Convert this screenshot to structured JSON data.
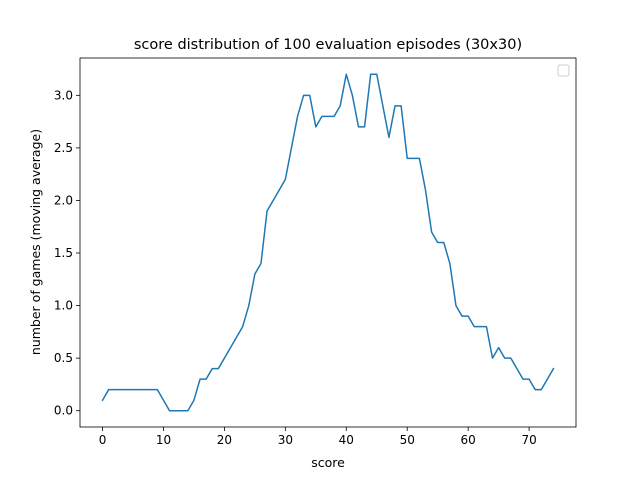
{
  "chart_data": {
    "type": "line",
    "title": "score distribution of 100 evaluation episodes (30x30)",
    "xlabel": "score",
    "ylabel": "number of games (moving average)",
    "xlim": [
      -3.7,
      77.7
    ],
    "ylim": [
      -0.155,
      3.355
    ],
    "xticks": [
      0,
      10,
      20,
      30,
      40,
      50,
      60,
      70
    ],
    "yticks": [
      0.0,
      0.5,
      1.0,
      1.5,
      2.0,
      2.5,
      3.0
    ],
    "ytick_labels": [
      "0.0",
      "0.5",
      "1.0",
      "1.5",
      "2.0",
      "2.5",
      "3.0"
    ],
    "legend": "top-right (empty)",
    "grid": false,
    "series": [
      {
        "name": "",
        "color": "#1f77b4",
        "x": [
          0,
          1,
          2,
          3,
          4,
          5,
          6,
          7,
          8,
          9,
          10,
          11,
          12,
          13,
          14,
          15,
          16,
          17,
          18,
          19,
          20,
          21,
          22,
          23,
          24,
          25,
          26,
          27,
          28,
          29,
          30,
          31,
          32,
          33,
          34,
          35,
          36,
          37,
          38,
          39,
          40,
          41,
          42,
          43,
          44,
          45,
          46,
          47,
          48,
          49,
          50,
          51,
          52,
          53,
          54,
          55,
          56,
          57,
          58,
          59,
          60,
          61,
          62,
          63,
          64,
          65,
          66,
          67,
          68,
          69,
          70,
          71,
          72,
          73,
          74
        ],
        "y": [
          0.1,
          0.2,
          0.2,
          0.2,
          0.2,
          0.2,
          0.2,
          0.2,
          0.2,
          0.2,
          0.1,
          0.0,
          0.0,
          0.0,
          0.0,
          0.1,
          0.3,
          0.3,
          0.4,
          0.4,
          0.5,
          0.6,
          0.7,
          0.8,
          1.0,
          1.3,
          1.4,
          1.9,
          2.0,
          2.1,
          2.2,
          2.5,
          2.8,
          3.0,
          3.0,
          2.7,
          2.8,
          2.8,
          2.8,
          2.9,
          3.2,
          3.0,
          2.7,
          2.7,
          3.2,
          3.2,
          2.9,
          2.6,
          2.9,
          2.9,
          2.4,
          2.4,
          2.4,
          2.1,
          1.7,
          1.6,
          1.6,
          1.4,
          1.0,
          0.9,
          0.9,
          0.8,
          0.8,
          0.8,
          0.5,
          0.6,
          0.5,
          0.5,
          0.4,
          0.3,
          0.3,
          0.2,
          0.2,
          0.3,
          0.4
        ]
      }
    ]
  }
}
